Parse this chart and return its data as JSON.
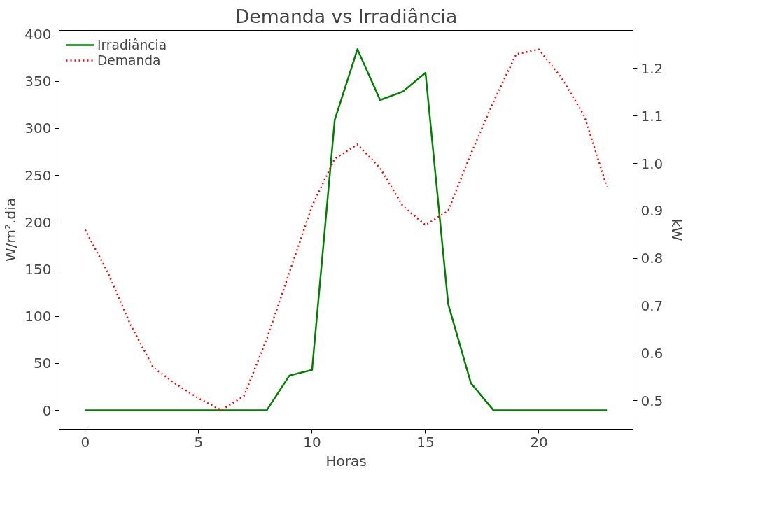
{
  "chart_data": {
    "type": "line",
    "title": "Demanda vs Irradiância",
    "xlabel": "Horas",
    "ylabel": "W/m².dia",
    "y2label": "kW",
    "x": [
      0,
      1,
      2,
      3,
      4,
      5,
      6,
      7,
      8,
      9,
      10,
      11,
      12,
      13,
      14,
      15,
      16,
      17,
      18,
      19,
      20,
      21,
      22,
      23
    ],
    "series": [
      {
        "name": "Irradiância",
        "color": "#008000",
        "line_style": "solid",
        "values": [
          0,
          0,
          0,
          0,
          0,
          0,
          0,
          0,
          0,
          37,
          43,
          309,
          384,
          330,
          339,
          359,
          113,
          29,
          0,
          0,
          0,
          0,
          0,
          0
        ]
      },
      {
        "name": "Demanda",
        "color": "#ff0000",
        "line_style": "dotted",
        "axis": "y2",
        "values": [
          0.86,
          0.77,
          0.66,
          0.57,
          0.535,
          0.505,
          0.48,
          0.51,
          0.63,
          0.77,
          0.91,
          1.01,
          1.04,
          0.99,
          0.91,
          0.87,
          0.9,
          1.02,
          1.13,
          1.23,
          1.24,
          1.18,
          1.1,
          0.95
        ]
      }
    ],
    "xlim": [
      -1.15,
      24.15
    ],
    "xticks": [
      0,
      5,
      10,
      15,
      20
    ],
    "ylim": [
      -20,
      404
    ],
    "yticks": [
      0,
      50,
      100,
      150,
      200,
      250,
      300,
      350,
      400
    ],
    "y2lim": [
      0.44,
      1.28
    ],
    "y2ticks": [
      0.5,
      0.6,
      0.7,
      0.8,
      0.9,
      {
        "value": 1.0,
        "label": "1.0"
      },
      1.1,
      1.2
    ],
    "grid": false,
    "legend": "top left",
    "marker": "none"
  }
}
